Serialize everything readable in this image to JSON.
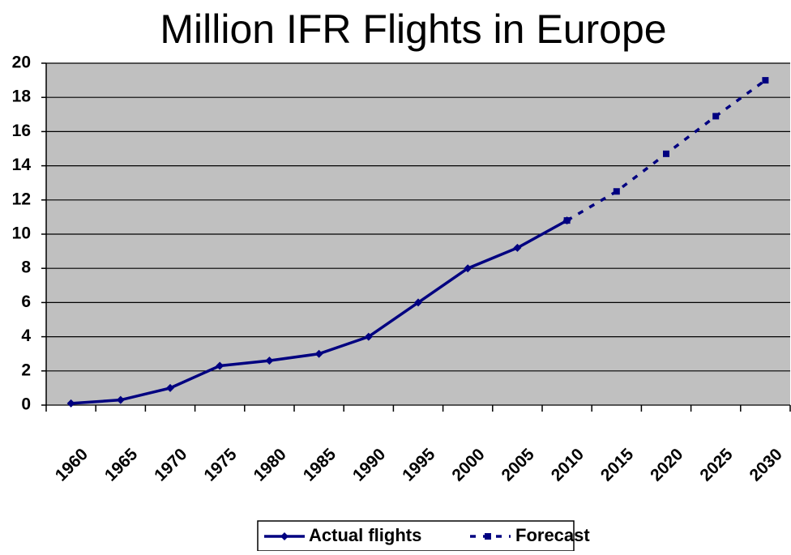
{
  "chart_data": {
    "type": "line",
    "title": "Million IFR Flights in Europe",
    "categories": [
      "1960",
      "1965",
      "1970",
      "1975",
      "1980",
      "1985",
      "1990",
      "1995",
      "2000",
      "2005",
      "2010",
      "2015",
      "2020",
      "2025",
      "2030"
    ],
    "series": [
      {
        "name": "Actual flights",
        "color": "#000080",
        "values": [
          0.1,
          0.3,
          1.0,
          2.3,
          2.6,
          3.0,
          4.0,
          6.0,
          8.0,
          9.2,
          10.8,
          null,
          null,
          null,
          null
        ]
      },
      {
        "name": "Forecast",
        "color": "#000080",
        "values": [
          null,
          null,
          null,
          null,
          null,
          null,
          null,
          null,
          null,
          null,
          10.8,
          12.5,
          14.7,
          16.9,
          19.0
        ]
      }
    ],
    "ylim": [
      0,
      20
    ],
    "yticks": [
      0,
      2,
      4,
      6,
      8,
      10,
      12,
      14,
      16,
      18,
      20
    ],
    "grid": true,
    "legend": "bottom"
  }
}
